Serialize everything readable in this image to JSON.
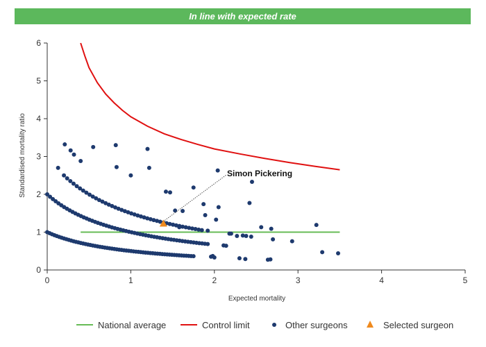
{
  "banner": {
    "text": "In line with expected rate"
  },
  "colors": {
    "banner_bg": "#5cb85c",
    "national_average": "#66bb55",
    "control_limit": "#e01010",
    "other_surgeons": "#1e3a6e",
    "selected_surgeon": "#ef8a1e",
    "axis": "#333333"
  },
  "chart_data": {
    "type": "scatter",
    "title": "",
    "xlabel": "Expected mortality",
    "ylabel": "Standardised mortality ratio",
    "xlim": [
      0,
      5
    ],
    "ylim": [
      0,
      6
    ],
    "x_ticks": [
      "0",
      "1",
      "2",
      "3",
      "4",
      "5"
    ],
    "y_ticks": [
      "0",
      "1",
      "2",
      "3",
      "4",
      "5",
      "6"
    ],
    "grid": false,
    "legend_position": "bottom",
    "legend": [
      {
        "key": "national_average",
        "label": "National average",
        "marker": "line"
      },
      {
        "key": "control_limit",
        "label": "Control limit",
        "marker": "line"
      },
      {
        "key": "other_surgeons",
        "label": "Other surgeons",
        "marker": "circle"
      },
      {
        "key": "selected_surgeon",
        "label": "Selected surgeon",
        "marker": "triangle"
      }
    ],
    "national_average": {
      "x": [
        0.4,
        3.5
      ],
      "y": [
        1,
        1
      ]
    },
    "control_limit": {
      "x": [
        0.4,
        0.45,
        0.5,
        0.6,
        0.7,
        0.8,
        0.9,
        1.0,
        1.2,
        1.4,
        1.6,
        1.8,
        2.0,
        2.3,
        2.6,
        2.9,
        3.2,
        3.5
      ],
      "y": [
        6.0,
        5.66,
        5.35,
        4.95,
        4.65,
        4.42,
        4.22,
        4.05,
        3.8,
        3.6,
        3.45,
        3.32,
        3.2,
        3.07,
        2.95,
        2.84,
        2.74,
        2.65
      ]
    },
    "other_surgeons_bands": [
      {
        "k": 1,
        "x_start": 0.0,
        "x_end": 1.75,
        "count": 62
      },
      {
        "k": 2,
        "x_start": 0.0,
        "x_end": 1.92,
        "count": 58
      },
      {
        "k": 3,
        "x_start": 0.2,
        "x_end": 1.85,
        "count": 44
      }
    ],
    "other_surgeons_points": {
      "x": [
        0.13,
        0.21,
        0.28,
        0.32,
        0.4,
        0.55,
        0.82,
        0.83,
        1.0,
        1.2,
        1.22,
        1.42,
        1.47,
        1.53,
        1.75,
        1.87,
        1.89,
        2.04,
        2.05,
        2.02,
        2.27,
        2.42,
        2.45,
        2.56,
        2.68,
        2.7,
        2.93,
        3.22,
        3.29,
        3.48,
        2.11,
        2.14,
        2.18,
        2.2,
        2.34,
        2.38,
        2.44,
        2.64,
        2.67,
        1.96,
        1.98,
        2.0,
        2.3,
        2.37,
        1.92,
        1.62,
        1.58
      ],
      "y": [
        2.7,
        3.32,
        3.16,
        3.05,
        2.88,
        3.25,
        3.3,
        2.72,
        2.5,
        3.2,
        2.7,
        2.07,
        2.05,
        1.57,
        2.18,
        1.74,
        1.45,
        2.63,
        1.66,
        1.33,
        0.9,
        1.77,
        2.33,
        1.13,
        1.09,
        0.81,
        0.76,
        1.19,
        0.47,
        0.44,
        0.65,
        0.64,
        0.96,
        0.96,
        0.91,
        0.9,
        0.88,
        0.27,
        0.28,
        0.35,
        0.37,
        0.33,
        0.31,
        0.29,
        1.04,
        1.56,
        1.13
      ]
    },
    "selected_surgeon": {
      "x": 1.39,
      "y": 1.22,
      "label": "Simon Pickering"
    }
  }
}
